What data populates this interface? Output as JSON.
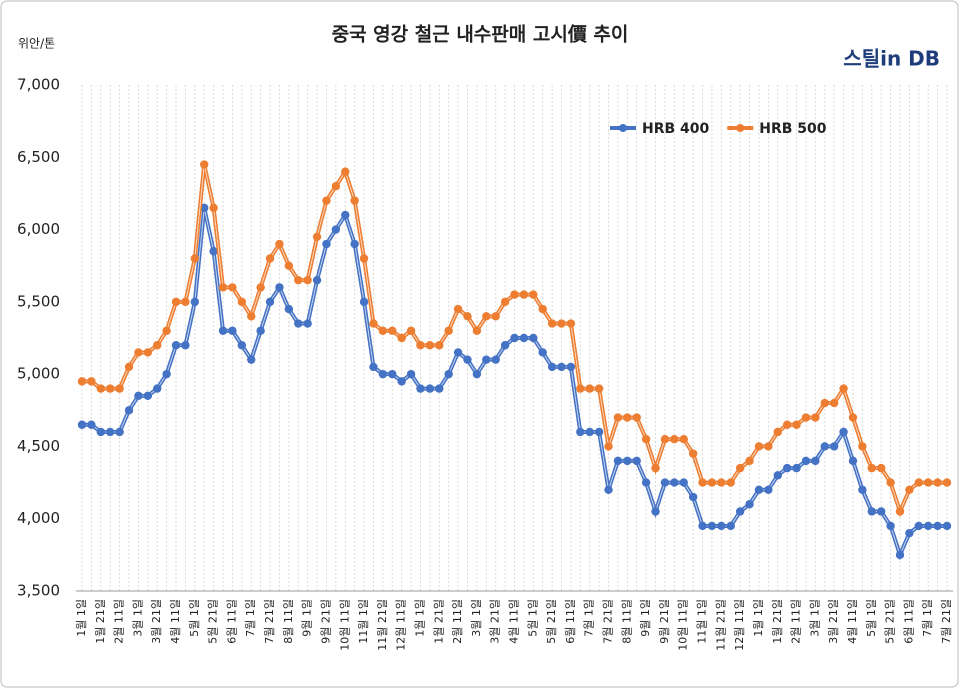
{
  "chart_data": {
    "type": "line",
    "title": "중국 영강 철근 내수판매 고시價 추이",
    "y_axis_label": "위안/톤",
    "logo": "스틸in DB",
    "categories": [
      "1월 1일",
      null,
      "1월 21일",
      null,
      "2월 11일",
      null,
      "3월 1일",
      null,
      "3월 21일",
      null,
      "4월 11일",
      null,
      "5월 1일",
      null,
      "5월 21일",
      null,
      "6월 11일",
      null,
      "7월 1일",
      null,
      "7월 21일",
      null,
      "8월 11일",
      null,
      "9월 1일",
      null,
      "9월 21일",
      null,
      "10월 11일",
      null,
      "11월 1일",
      null,
      "11월 21일",
      null,
      "12월 11일",
      null,
      "1월 1일",
      null,
      "1월 21일",
      null,
      "2월 11일",
      null,
      "3월 1일",
      null,
      "3월 21일",
      null,
      "4월 11일",
      null,
      "5월 1일",
      null,
      "5월 21일",
      null,
      "6월 11일",
      null,
      "7월 1일",
      null,
      "7월 21일",
      null,
      "8월 11일",
      null,
      "9월 1일",
      null,
      "9월 21일",
      null,
      "10월 11일",
      null,
      "11월 1일",
      null,
      "11월 21일",
      null,
      "12월 11일",
      null,
      "1월 1일",
      null,
      "1월 21일",
      null,
      "2월 11일",
      null,
      "3월 1일",
      null,
      "3월 21일",
      null,
      "4월 11일",
      null,
      "5월 1일",
      null,
      "5월 21일",
      null,
      "6월 11일",
      null,
      "7월 1일",
      null,
      "7월 21일"
    ],
    "series": [
      {
        "name": "HRB 400",
        "color": "#4472c4",
        "values": [
          4650,
          4650,
          4600,
          4600,
          4600,
          4750,
          4850,
          4850,
          4900,
          5000,
          5200,
          5200,
          5500,
          6150,
          5850,
          5300,
          5300,
          5200,
          5100,
          5300,
          5500,
          5600,
          5450,
          5350,
          5350,
          5650,
          5900,
          6000,
          6100,
          5900,
          5500,
          5050,
          5000,
          5000,
          4950,
          5000,
          4900,
          4900,
          4900,
          5000,
          5150,
          5100,
          5000,
          5100,
          5100,
          5200,
          5250,
          5250,
          5250,
          5150,
          5050,
          5050,
          5050,
          4600,
          4600,
          4600,
          4200,
          4400,
          4400,
          4400,
          4250,
          4050,
          4250,
          4250,
          4250,
          4150,
          3950,
          3950,
          3950,
          3950,
          4050,
          4100,
          4200,
          4200,
          4300,
          4350,
          4350,
          4400,
          4400,
          4500,
          4500,
          4600,
          4400,
          4200,
          4050,
          4050,
          3950,
          3750,
          3900,
          3950,
          3950,
          3950,
          3950
        ]
      },
      {
        "name": "HRB 500",
        "color": "#ed7d31",
        "values": [
          4950,
          4950,
          4900,
          4900,
          4900,
          5050,
          5150,
          5150,
          5200,
          5300,
          5500,
          5500,
          5800,
          6450,
          6150,
          5600,
          5600,
          5500,
          5400,
          5600,
          5800,
          5900,
          5750,
          5650,
          5650,
          5950,
          6200,
          6300,
          6400,
          6200,
          5800,
          5350,
          5300,
          5300,
          5250,
          5300,
          5200,
          5200,
          5200,
          5300,
          5450,
          5400,
          5300,
          5400,
          5400,
          5500,
          5550,
          5550,
          5550,
          5450,
          5350,
          5350,
          5350,
          4900,
          4900,
          4900,
          4500,
          4700,
          4700,
          4700,
          4550,
          4350,
          4550,
          4550,
          4550,
          4450,
          4250,
          4250,
          4250,
          4250,
          4350,
          4400,
          4500,
          4500,
          4600,
          4650,
          4650,
          4700,
          4700,
          4800,
          4800,
          4900,
          4700,
          4500,
          4350,
          4350,
          4250,
          4050,
          4200,
          4250,
          4250,
          4250,
          4250
        ]
      }
    ],
    "ylim": [
      3500,
      7000
    ],
    "yticks": [
      {
        "value": 3500,
        "label": "3,500"
      },
      {
        "value": 4000,
        "label": "4,000"
      },
      {
        "value": 4500,
        "label": "4,500"
      },
      {
        "value": 5000,
        "label": "5,000"
      },
      {
        "value": 5500,
        "label": "5,500"
      },
      {
        "value": 6000,
        "label": "6,000"
      },
      {
        "value": 6500,
        "label": "6,500"
      },
      {
        "value": 7000,
        "label": "7,000"
      }
    ],
    "legend": "top-right"
  }
}
